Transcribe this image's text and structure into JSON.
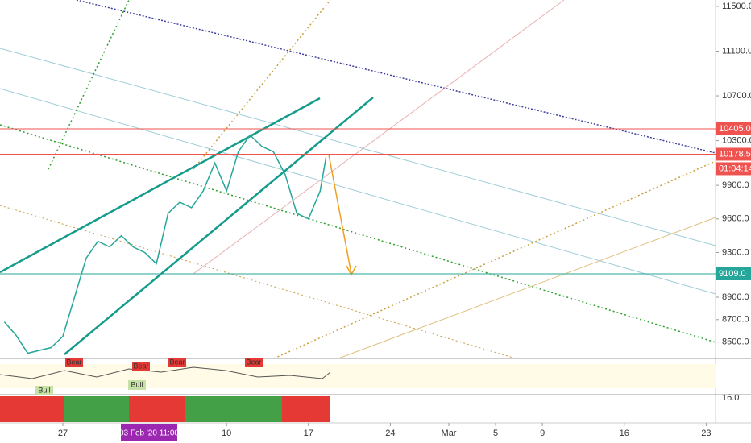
{
  "chart_data": {
    "type": "line",
    "series": [
      {
        "color": "#26a69a",
        "x": [
          -5,
          -4,
          -3,
          -1,
          0,
          1,
          2,
          3,
          4,
          5,
          6,
          7,
          8,
          9,
          10,
          11,
          12,
          13,
          14,
          15,
          16,
          17,
          18,
          19,
          20,
          21,
          22,
          22.5
        ],
        "values": [
          8680,
          8560,
          8400,
          8450,
          8550,
          8900,
          9250,
          9400,
          9350,
          9450,
          9350,
          9300,
          9200,
          9650,
          9750,
          9700,
          9850,
          10100,
          9850,
          10200,
          10350,
          10250,
          10200,
          10000,
          9650,
          9600,
          9850,
          10150
        ]
      }
    ],
    "xlim": [
      -5.37,
      55.8
    ],
    "xticks": [
      {
        "value": 0,
        "label": "27"
      },
      {
        "value": 14,
        "label": "10"
      },
      {
        "value": 21,
        "label": "17"
      },
      {
        "value": 28,
        "label": "24"
      },
      {
        "value": 33,
        "label": "Mar"
      },
      {
        "value": 37,
        "label": "5"
      },
      {
        "value": 41,
        "label": "9"
      },
      {
        "value": 48,
        "label": "16"
      },
      {
        "value": 55,
        "label": "23"
      }
    ],
    "ylim": [
      8353,
      11557
    ],
    "yticks": [
      {
        "value": 8500,
        "label": "8500.0"
      },
      {
        "value": 8700,
        "label": "8700.0"
      },
      {
        "value": 8900,
        "label": "8900.0"
      },
      {
        "value": 9300,
        "label": "9300.0"
      },
      {
        "value": 9600,
        "label": "9600.0"
      },
      {
        "value": 9900,
        "label": "9900.0"
      },
      {
        "value": 10300,
        "label": "10300.0"
      },
      {
        "value": 10700,
        "label": "10700.0"
      },
      {
        "value": 11100,
        "label": "11100.0"
      },
      {
        "value": 11500,
        "label": "11500.0"
      }
    ],
    "price_lines": [
      {
        "value": 10405,
        "label": "10405.0",
        "color": "#ef5350"
      },
      {
        "value": 10178.5,
        "label": "10178.5",
        "color": "#ef5350"
      },
      {
        "value": 9109,
        "label": "9109.0",
        "color": "#26a69a"
      }
    ],
    "countdown": "01:04:14",
    "crosshair_time": "03 Feb '20  11:00",
    "indicator_labels": [
      "Bear",
      "Bear",
      "Bear",
      "Bear",
      "Bull",
      "Bull"
    ],
    "oscillator_tick": "16.0"
  }
}
